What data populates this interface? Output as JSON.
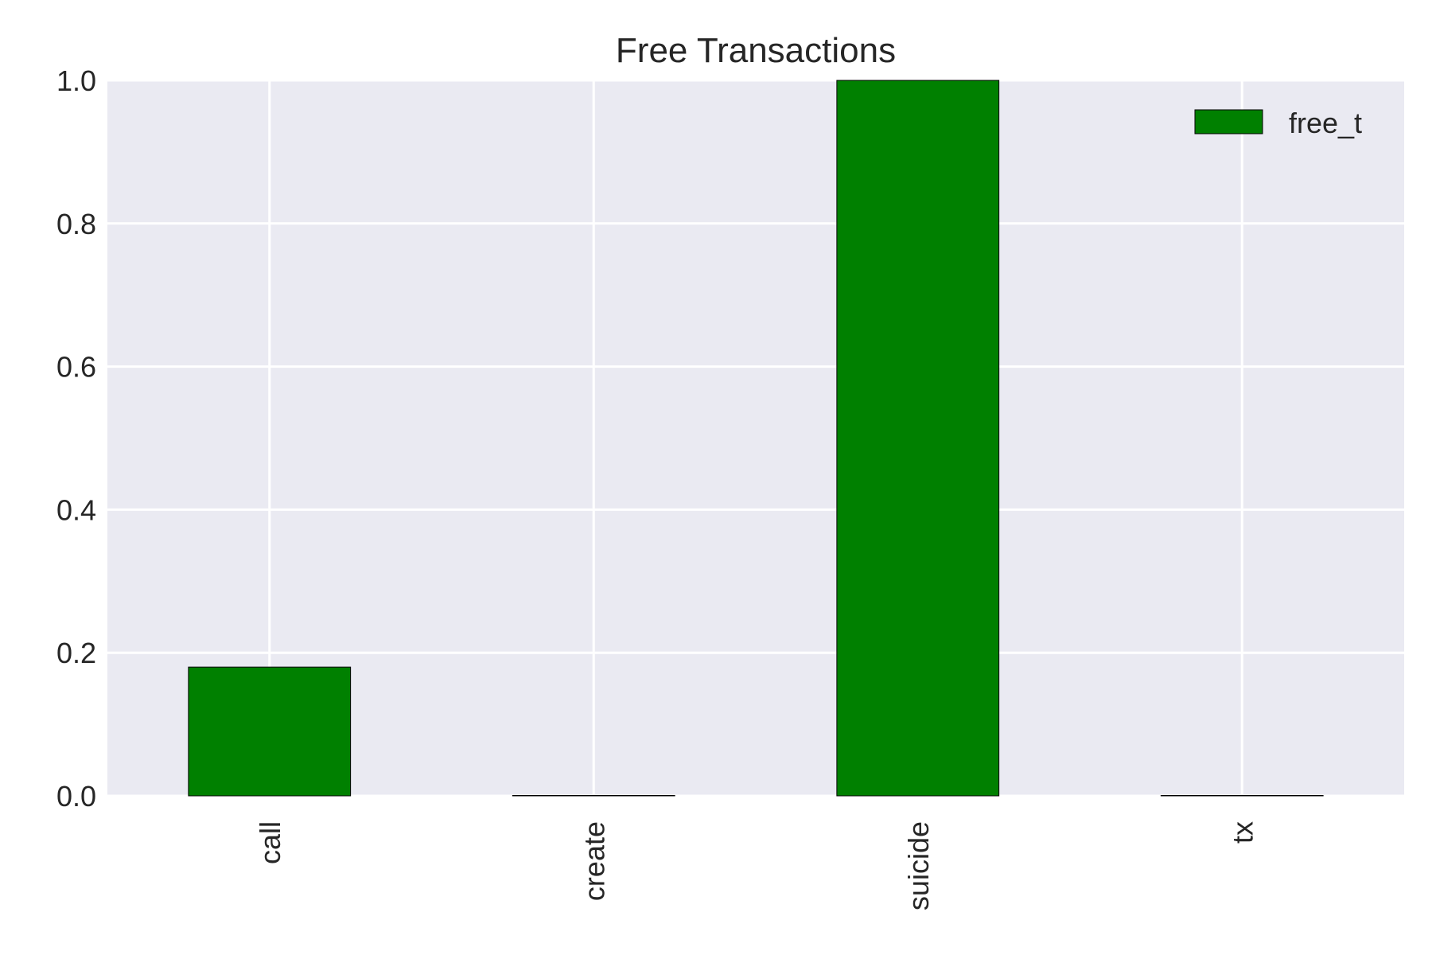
{
  "chart_data": {
    "type": "bar",
    "title": "Free Transactions",
    "xlabel": "",
    "ylabel": "",
    "categories": [
      "call",
      "create",
      "suicide",
      "tx"
    ],
    "series": [
      {
        "name": "free_t",
        "values": [
          0.18,
          0.0,
          1.0,
          0.0
        ],
        "color": "#008000"
      }
    ],
    "ylim": [
      0,
      1.0
    ],
    "yticks": [
      "0.0",
      "0.2",
      "0.4",
      "0.6",
      "0.8",
      "1.0"
    ],
    "grid": true,
    "legend_position": "top-right",
    "background_color": "#eaeaf2",
    "x_tick_rotation": "vertical"
  }
}
